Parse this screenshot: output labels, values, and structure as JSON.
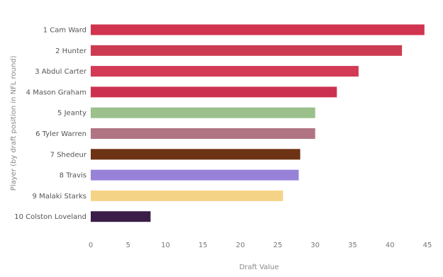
{
  "chart_data": {
    "type": "bar",
    "orientation": "horizontal",
    "title": "",
    "xlabel": "Draft Value",
    "ylabel": "Player (by draft position in NFL round)",
    "xlim": [
      0,
      45
    ],
    "xticks": [
      0,
      5,
      10,
      15,
      20,
      25,
      30,
      35,
      40,
      45
    ],
    "grid": false,
    "legend": "none",
    "categories": [
      "1 Cam Ward",
      "2 Hunter",
      "3 Abdul Carter",
      "4 Mason Graham",
      "5 Jeanty",
      "6 Tyler Warren",
      "7 Shedeur",
      "8 Travis",
      "9 Malaki Starks",
      "10 Colston Loveland"
    ],
    "values": [
      44.6,
      41.6,
      35.8,
      32.9,
      30.0,
      30.0,
      28.0,
      27.8,
      25.7,
      8.0
    ],
    "colors": [
      "#d0344f",
      "#cc3b52",
      "#d23a55",
      "#cd3150",
      "#9bc08c",
      "#b07482",
      "#6e3315",
      "#9882d9",
      "#f5d386",
      "#3b1e48"
    ]
  }
}
